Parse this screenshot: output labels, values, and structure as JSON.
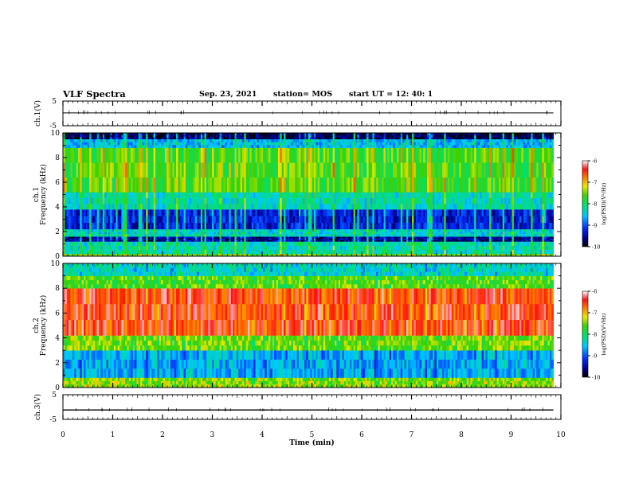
{
  "header": {
    "title": "VLF Spectra",
    "date": "Sep. 23, 2021",
    "station": "station= MOS",
    "start": "start  UT =   12: 40: 1"
  },
  "chart_data": [
    {
      "type": "line",
      "name": "ch1_voltage",
      "ylabel": "ch.1(V)",
      "ylim": [
        -5,
        5
      ],
      "yticks": [
        "5",
        "-5"
      ],
      "x": [
        0,
        9.85
      ],
      "values": [
        0.2,
        0.2
      ]
    },
    {
      "type": "heatmap",
      "name": "ch1_spectrogram",
      "ylabel_channel": "ch.1",
      "ylabel": "Frequency (kHz)",
      "xlim": [
        0,
        10
      ],
      "ylim": [
        0,
        10
      ],
      "yticks": [
        "0",
        "2",
        "4",
        "6",
        "8",
        "10"
      ],
      "colorbar": {
        "label": "log(PSD)(V²/Hz)",
        "ticks": [
          "-6",
          "-7",
          "-8",
          "-9",
          "-10"
        ],
        "range": [
          -10,
          -6
        ]
      },
      "bands": [
        {
          "from_khz": 0.0,
          "to_khz": 0.2,
          "log_psd": -7.6
        },
        {
          "from_khz": 0.2,
          "to_khz": 1.2,
          "log_psd": -8.3
        },
        {
          "from_khz": 1.2,
          "to_khz": 1.6,
          "log_psd": -9.6
        },
        {
          "from_khz": 1.6,
          "to_khz": 2.2,
          "log_psd": -8.4
        },
        {
          "from_khz": 2.2,
          "to_khz": 3.8,
          "log_psd": -9.3
        },
        {
          "from_khz": 3.8,
          "to_khz": 5.2,
          "log_psd": -8.3
        },
        {
          "from_khz": 5.2,
          "to_khz": 8.8,
          "log_psd": -7.7
        },
        {
          "from_khz": 8.8,
          "to_khz": 9.5,
          "log_psd": -8.6
        },
        {
          "from_khz": 9.5,
          "to_khz": 10.0,
          "log_psd": -9.8
        }
      ]
    },
    {
      "type": "heatmap",
      "name": "ch2_spectrogram",
      "ylabel_channel": "ch.2",
      "ylabel": "Frequency (kHz)",
      "xlim": [
        0,
        10
      ],
      "ylim": [
        0,
        10
      ],
      "yticks": [
        "0",
        "2",
        "4",
        "6",
        "8",
        "10"
      ],
      "colorbar": {
        "label": "log(PSD)(V²/Hz)",
        "ticks": [
          "-6",
          "-7",
          "-8",
          "-9",
          "-10"
        ],
        "range": [
          -10,
          -6
        ]
      },
      "bands": [
        {
          "from_khz": 0.0,
          "to_khz": 0.8,
          "log_psd": -7.4
        },
        {
          "from_khz": 0.8,
          "to_khz": 3.0,
          "log_psd": -8.6
        },
        {
          "from_khz": 3.0,
          "to_khz": 4.2,
          "log_psd": -7.5
        },
        {
          "from_khz": 4.2,
          "to_khz": 8.0,
          "log_psd": -6.5
        },
        {
          "from_khz": 8.0,
          "to_khz": 9.0,
          "log_psd": -7.6
        },
        {
          "from_khz": 9.0,
          "to_khz": 10.0,
          "log_psd": -8.3
        }
      ]
    },
    {
      "type": "line",
      "name": "ch3_voltage",
      "ylabel": "ch.3(V)",
      "ylim": [
        -5,
        5
      ],
      "yticks": [
        "5",
        "-5"
      ],
      "x": [
        0,
        9.85
      ],
      "values": [
        -1.2,
        -1.2
      ]
    }
  ],
  "xaxis": {
    "label": "Time (min)",
    "ticks": [
      "0",
      "1",
      "2",
      "3",
      "4",
      "5",
      "6",
      "7",
      "8",
      "9",
      "10"
    ],
    "xlim": [
      0,
      10
    ]
  }
}
